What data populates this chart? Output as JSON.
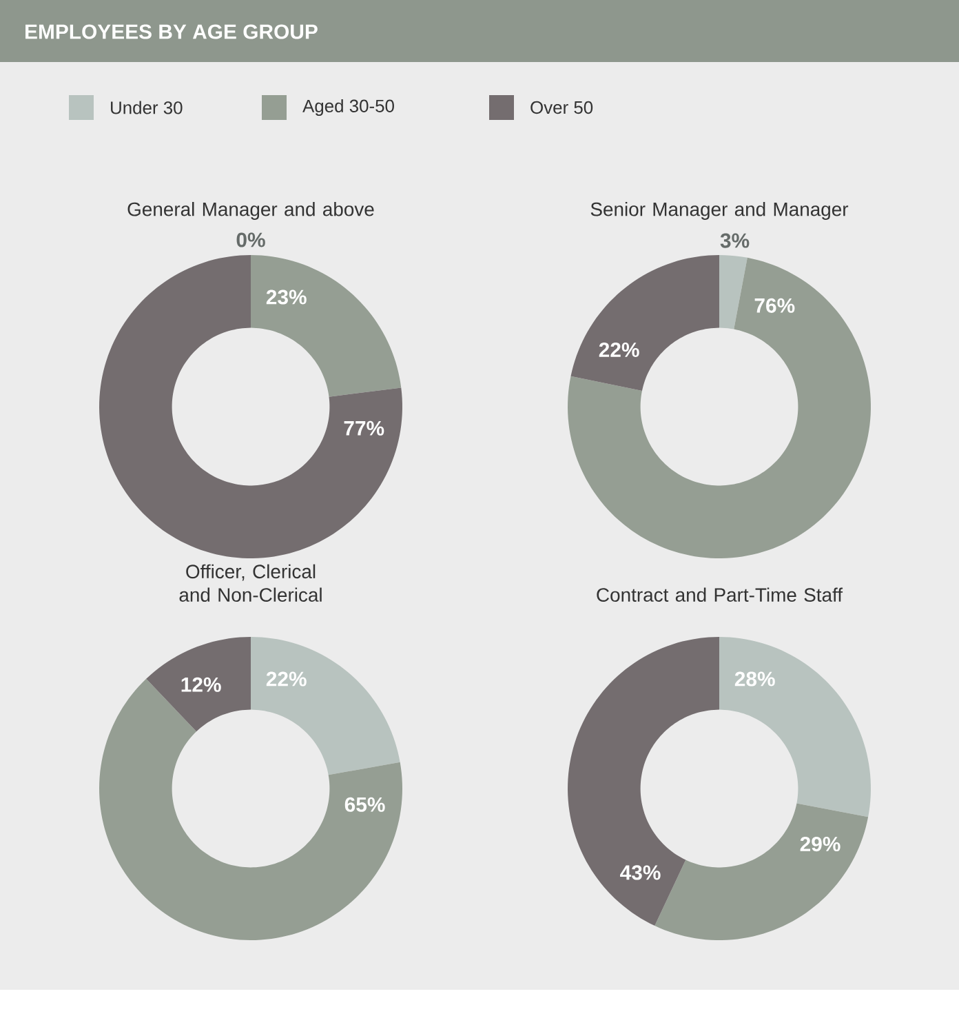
{
  "chart_data": [
    {
      "type": "donut",
      "title": "EMPLOYEES BY AGE GROUP",
      "subtitle": "General Manager and above",
      "legend": "top",
      "categories": [
        "Under 30",
        "Aged 30-50",
        "Over 50"
      ],
      "values": [
        0,
        23,
        77
      ],
      "colors": [
        "#b8c3bf",
        "#959e93",
        "#746d6f"
      ],
      "value_labels": [
        "0%",
        "23%",
        "77%"
      ]
    },
    {
      "type": "donut",
      "subtitle": "Senior Manager and Manager",
      "categories": [
        null,
        null,
        null
      ],
      "values": [
        3,
        76,
        22
      ],
      "colors": [
        "#b8c3bf",
        "#959e93",
        "#746d6f"
      ],
      "value_labels": [
        "3%",
        "76%",
        "22%"
      ]
    },
    {
      "type": "donut",
      "subtitle": "Officer, Clerical and Non-Clerical",
      "categories": [
        null,
        null,
        null
      ],
      "values": [
        22,
        65,
        12
      ],
      "colors": [
        "#b8c3bf",
        "#959e93",
        "#746d6f"
      ],
      "value_labels": [
        "22%",
        "65%",
        "12%"
      ]
    },
    {
      "type": "donut",
      "subtitle": "Contract and Part-Time Staff",
      "categories": [
        null,
        null,
        null
      ],
      "values": [
        28,
        29,
        43
      ],
      "colors": [
        "#b8c3bf",
        "#959e93",
        "#746d6f"
      ],
      "value_labels": [
        "28%",
        "29%",
        "43%"
      ]
    }
  ]
}
